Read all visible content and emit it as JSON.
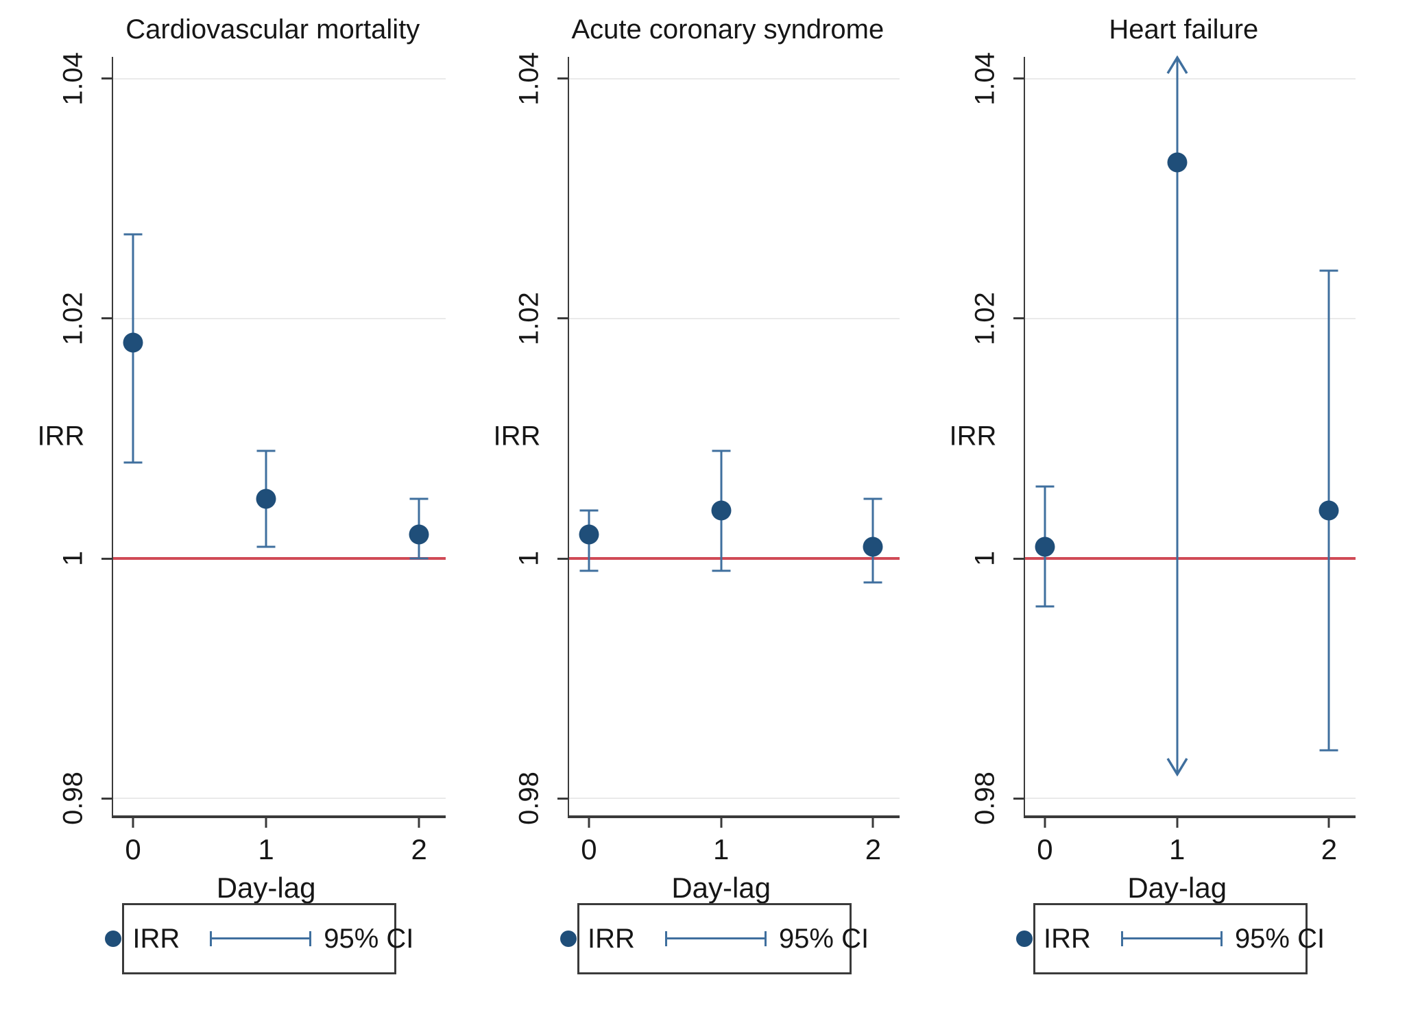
{
  "chart": {
    "y_axis": {
      "title": "IRR",
      "min": 0.9786,
      "max": 1.0418,
      "ticks": [
        {
          "label": "1.04",
          "value": 1.04
        },
        {
          "label": "1.02",
          "value": 1.02
        },
        {
          "label": "1",
          "value": 1.0
        },
        {
          "label": "0.98",
          "value": 0.98
        }
      ]
    },
    "x_axis": {
      "title": "Day-lag",
      "ticks": [
        {
          "label": "0"
        },
        {
          "label": "1"
        },
        {
          "label": "2"
        }
      ]
    },
    "refline": {
      "value": 1.0
    },
    "legend": {
      "irr_label": "IRR",
      "ci_label": "95% CI"
    },
    "colors": {
      "point": "#1f4e79",
      "ci": "#3f6f9e",
      "refline": "#d04a56",
      "grid": "#eaeaea",
      "axis": "#3a3a3a"
    }
  },
  "chart_data": [
    {
      "type": "scatter",
      "title": "Cardiovascular mortality",
      "xlabel": "Day-lag",
      "ylabel": "IRR",
      "ylim": [
        0.9786,
        1.0418
      ],
      "x": [
        0,
        1,
        2
      ],
      "points": [
        {
          "x": 0,
          "irr": 1.018,
          "ci_low": 1.008,
          "ci_high": 1.027
        },
        {
          "x": 1,
          "irr": 1.005,
          "ci_low": 1.001,
          "ci_high": 1.009
        },
        {
          "x": 2,
          "irr": 1.002,
          "ci_low": 1.0,
          "ci_high": 1.005
        }
      ]
    },
    {
      "type": "scatter",
      "title": "Acute coronary syndrome",
      "xlabel": "Day-lag",
      "ylabel": "IRR",
      "ylim": [
        0.9786,
        1.0418
      ],
      "x": [
        0,
        1,
        2
      ],
      "points": [
        {
          "x": 0,
          "irr": 1.002,
          "ci_low": 0.999,
          "ci_high": 1.004
        },
        {
          "x": 1,
          "irr": 1.004,
          "ci_low": 0.999,
          "ci_high": 1.009
        },
        {
          "x": 2,
          "irr": 1.001,
          "ci_low": 0.998,
          "ci_high": 1.005
        }
      ]
    },
    {
      "type": "scatter",
      "title": "Heart failure",
      "xlabel": "Day-lag",
      "ylabel": "IRR",
      "ylim": [
        0.9786,
        1.0418
      ],
      "x": [
        0,
        1,
        2
      ],
      "points": [
        {
          "x": 0,
          "irr": 1.001,
          "ci_low": 0.996,
          "ci_high": 1.006
        },
        {
          "x": 1,
          "irr": 1.033,
          "ci_low": 0.982,
          "ci_high": 1.042,
          "ci_low_clipped": true,
          "ci_high_clipped": true
        },
        {
          "x": 2,
          "irr": 1.004,
          "ci_low": 0.984,
          "ci_high": 1.024
        }
      ]
    }
  ]
}
